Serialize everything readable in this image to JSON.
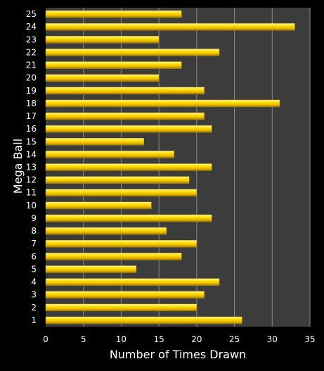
{
  "chart_data": {
    "type": "bar",
    "orientation": "horizontal",
    "title": "",
    "xlabel": "Number of Times Drawn",
    "ylabel": "Mega Ball",
    "xlim": [
      0,
      35
    ],
    "x_ticks": [
      "0",
      "5",
      "10",
      "15",
      "20",
      "25",
      "30",
      "35"
    ],
    "grid": true,
    "categories": [
      "1",
      "2",
      "3",
      "4",
      "5",
      "6",
      "7",
      "8",
      "9",
      "10",
      "11",
      "12",
      "13",
      "14",
      "15",
      "16",
      "17",
      "18",
      "19",
      "20",
      "21",
      "22",
      "23",
      "24",
      "25"
    ],
    "values": [
      26,
      20,
      21,
      23,
      12,
      18,
      20,
      16,
      22,
      14,
      20,
      19,
      22,
      17,
      13,
      22,
      21,
      31,
      21,
      15,
      18,
      23,
      15,
      33,
      18
    ]
  },
  "colors": {
    "background": "#000000",
    "plot_area": "#3c3c3c",
    "gridline": "#8a8a8a",
    "bar": "#ffd700",
    "bar_highlight": "#fff4a0",
    "bar_shadow": "#b08a00",
    "text": "#ffffff"
  }
}
